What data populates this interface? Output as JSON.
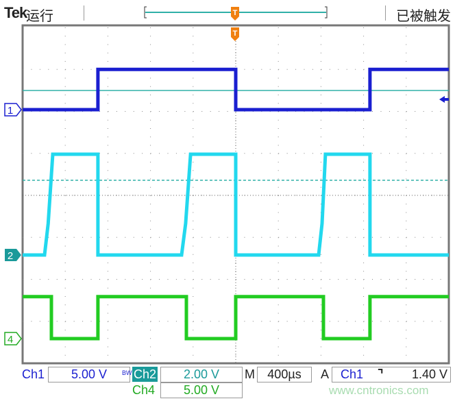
{
  "header": {
    "brand": "Tek",
    "run_state": "运行",
    "trigger_state": "已被触发"
  },
  "readouts": {
    "ch1_label": "Ch1",
    "ch1_scale": "5.00 V",
    "bw_label": "BW",
    "ch2_label": "Ch2",
    "ch2_scale": "2.00 V",
    "ch4_label": "Ch4",
    "ch4_scale": "5.00 V",
    "m_label": "M",
    "timebase": "400µs",
    "a_label": "A",
    "trig_source": "Ch1",
    "trig_slope_icon": "falling-edge-icon",
    "trig_level": "1.40 V"
  },
  "markers": {
    "ch1": "1",
    "ch2": "2",
    "ch4": "4",
    "trigger": "T"
  },
  "watermark": "www.cntronics.com",
  "colors": {
    "ch1": "#1a1fd0",
    "ch2": "#22d8ee",
    "ch4": "#22cc22",
    "trigger": "#f08010",
    "ref_line": "#30b0a8"
  },
  "chart_data": {
    "type": "line",
    "grid": true,
    "x_unit": "µs",
    "xlim": [
      -2000,
      2000
    ],
    "series": [
      {
        "name": "Ch1",
        "volts_per_div": 5,
        "points": [
          [
            -2000,
            0
          ],
          [
            -1293,
            0
          ],
          [
            -1293,
            4.8
          ],
          [
            0,
            4.8
          ],
          [
            0,
            0
          ],
          [
            1260,
            0
          ],
          [
            1260,
            4.8
          ],
          [
            2000,
            4.8
          ]
        ]
      },
      {
        "name": "Ch2",
        "volts_per_div": 2,
        "points": [
          [
            -2000,
            0
          ],
          [
            -1794,
            0
          ],
          [
            -1760,
            1.5
          ],
          [
            -1717,
            4.8
          ],
          [
            -1293,
            4.8
          ],
          [
            -1293,
            0
          ],
          [
            -508,
            0
          ],
          [
            -470,
            1.5
          ],
          [
            -424,
            4.8
          ],
          [
            0,
            4.8
          ],
          [
            0,
            0
          ],
          [
            778,
            0
          ],
          [
            810,
            1.5
          ],
          [
            842,
            4.8
          ],
          [
            1260,
            4.8
          ],
          [
            1260,
            0
          ],
          [
            2000,
            0
          ]
        ]
      },
      {
        "name": "Ch4",
        "volts_per_div": 5,
        "points": [
          [
            -2000,
            5
          ],
          [
            -1730,
            5
          ],
          [
            -1730,
            0
          ],
          [
            -1293,
            0
          ],
          [
            -1293,
            5
          ],
          [
            -463,
            5
          ],
          [
            -463,
            0
          ],
          [
            0,
            0
          ],
          [
            0,
            5
          ],
          [
            823,
            5
          ],
          [
            823,
            0
          ],
          [
            1260,
            0
          ],
          [
            1260,
            5
          ],
          [
            2000,
            5
          ]
        ]
      }
    ],
    "trigger": {
      "source": "Ch1",
      "slope": "falling",
      "level_v": 1.4,
      "time_us": 0
    }
  }
}
